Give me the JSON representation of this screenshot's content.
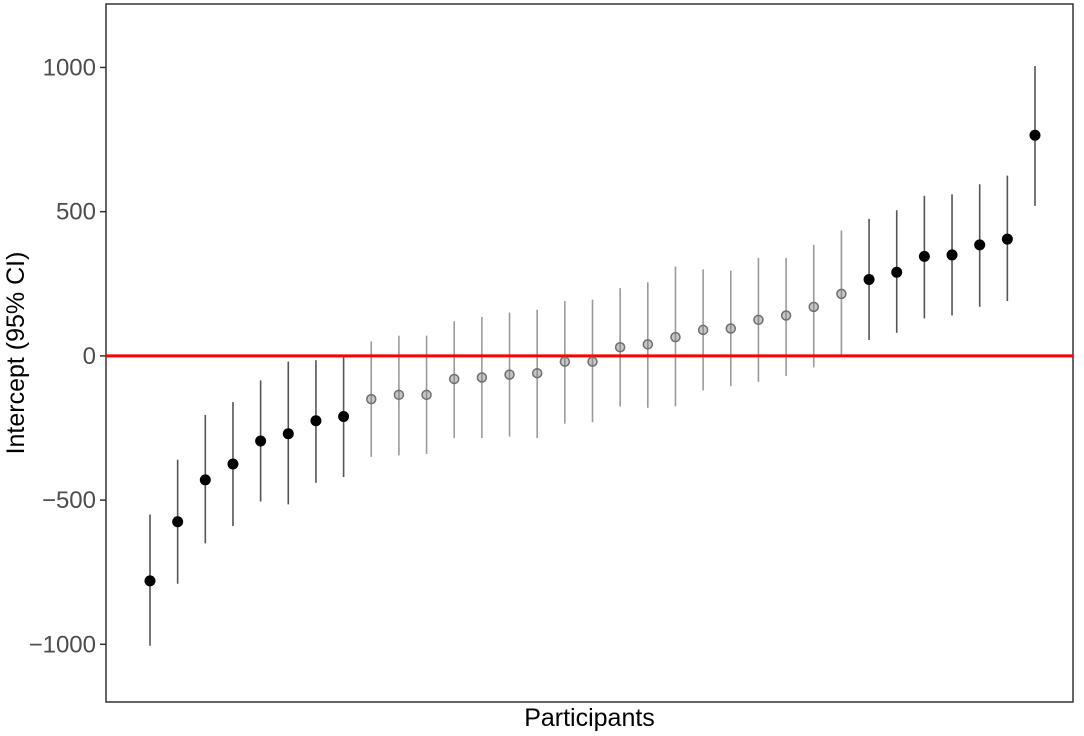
{
  "chart_data": {
    "type": "scatter",
    "xlabel": "Participants",
    "ylabel": "Intercept (95% CI)",
    "ylim": [
      -1200,
      1220
    ],
    "yticks": [
      -1000,
      -500,
      0,
      500,
      1000
    ],
    "reference_line": {
      "y": 0,
      "color": "#ff0000"
    },
    "grid": false,
    "colors": {
      "significant": "#000000",
      "non_significant": "#808080"
    },
    "points": [
      {
        "y": -780,
        "lo": -1005,
        "hi": -550,
        "significant": true
      },
      {
        "y": -575,
        "lo": -790,
        "hi": -360,
        "significant": true
      },
      {
        "y": -430,
        "lo": -650,
        "hi": -205,
        "significant": true
      },
      {
        "y": -375,
        "lo": -590,
        "hi": -160,
        "significant": true
      },
      {
        "y": -295,
        "lo": -505,
        "hi": -85,
        "significant": true
      },
      {
        "y": -270,
        "lo": -515,
        "hi": -20,
        "significant": true
      },
      {
        "y": -225,
        "lo": -440,
        "hi": -15,
        "significant": true
      },
      {
        "y": -210,
        "lo": -420,
        "hi": -5,
        "significant": true
      },
      {
        "y": -150,
        "lo": -350,
        "hi": 50,
        "significant": false
      },
      {
        "y": -135,
        "lo": -345,
        "hi": 70,
        "significant": false
      },
      {
        "y": -135,
        "lo": -340,
        "hi": 70,
        "significant": false
      },
      {
        "y": -80,
        "lo": -285,
        "hi": 120,
        "significant": false
      },
      {
        "y": -75,
        "lo": -285,
        "hi": 135,
        "significant": false
      },
      {
        "y": -65,
        "lo": -280,
        "hi": 150,
        "significant": false
      },
      {
        "y": -60,
        "lo": -285,
        "hi": 160,
        "significant": false
      },
      {
        "y": -20,
        "lo": -235,
        "hi": 190,
        "significant": false
      },
      {
        "y": -20,
        "lo": -230,
        "hi": 195,
        "significant": false
      },
      {
        "y": 30,
        "lo": -175,
        "hi": 235,
        "significant": false
      },
      {
        "y": 40,
        "lo": -180,
        "hi": 255,
        "significant": false
      },
      {
        "y": 65,
        "lo": -175,
        "hi": 310,
        "significant": false
      },
      {
        "y": 90,
        "lo": -120,
        "hi": 300,
        "significant": false
      },
      {
        "y": 95,
        "lo": -105,
        "hi": 295,
        "significant": false
      },
      {
        "y": 125,
        "lo": -90,
        "hi": 340,
        "significant": false
      },
      {
        "y": 140,
        "lo": -70,
        "hi": 340,
        "significant": false
      },
      {
        "y": 170,
        "lo": -40,
        "hi": 385,
        "significant": false
      },
      {
        "y": 215,
        "lo": 0,
        "hi": 435,
        "significant": false
      },
      {
        "y": 265,
        "lo": 55,
        "hi": 475,
        "significant": true
      },
      {
        "y": 290,
        "lo": 80,
        "hi": 505,
        "significant": true
      },
      {
        "y": 345,
        "lo": 130,
        "hi": 555,
        "significant": true
      },
      {
        "y": 350,
        "lo": 140,
        "hi": 560,
        "significant": true
      },
      {
        "y": 385,
        "lo": 170,
        "hi": 595,
        "significant": true
      },
      {
        "y": 405,
        "lo": 190,
        "hi": 625,
        "significant": true
      },
      {
        "y": 765,
        "lo": 520,
        "hi": 1005,
        "significant": true
      }
    ]
  }
}
